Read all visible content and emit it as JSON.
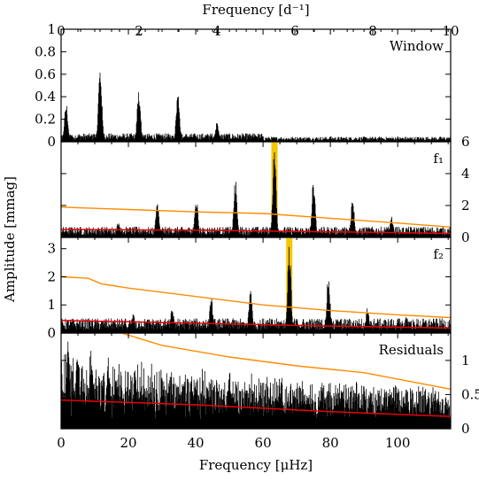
{
  "chart_data": {
    "type": "line",
    "x_top_label": "Frequency [d⁻¹]",
    "x_top_ticks": [
      "0",
      "2",
      "4",
      "6",
      "8",
      "10"
    ],
    "x_top_range": [
      0,
      10
    ],
    "x_bottom_label": "Frequency [μHz]",
    "x_bottom_ticks": [
      "0",
      "20",
      "40",
      "60",
      "80",
      "100"
    ],
    "x_bottom_range": [
      0,
      115.74
    ],
    "ylabel": "Amplitude [mmag]",
    "colors": {
      "spectrum": "#000000",
      "threshold": "#ff8c00",
      "noise": "#e8000b",
      "highlight": "#f5c800"
    },
    "panels": [
      {
        "label": "Window",
        "ylim": [
          0,
          1
        ],
        "y_ticks": [
          "0",
          "0.2",
          "0.4",
          "0.6",
          "0.8",
          "1"
        ],
        "y_tick_values": [
          0,
          0.2,
          0.4,
          0.6,
          0.8,
          1
        ],
        "y_side": "left",
        "peaks": [
          [
            11.6,
            0.68
          ],
          [
            23.1,
            0.47
          ],
          [
            34.7,
            0.45
          ],
          [
            46.3,
            0.17
          ],
          [
            57.9,
            0.06
          ],
          [
            1.5,
            0.35
          ]
        ],
        "floor": 0.05
      },
      {
        "label": "f₁",
        "ylim": [
          0,
          6
        ],
        "y_ticks": [
          "0",
          "2",
          "4",
          "6"
        ],
        "y_tick_values": [
          0,
          2,
          4,
          6
        ],
        "y_side": "right",
        "peaks": [
          [
            63.4,
            5.8
          ],
          [
            51.8,
            3.7
          ],
          [
            75.0,
            3.7
          ],
          [
            40.2,
            2.5
          ],
          [
            28.6,
            2.2
          ],
          [
            86.6,
            2.5
          ],
          [
            98.2,
            1.3
          ],
          [
            17.0,
            1.0
          ]
        ],
        "floor": 0.45,
        "threshold": [
          [
            0,
            1.9
          ],
          [
            20,
            1.75
          ],
          [
            40,
            1.6
          ],
          [
            60,
            1.5
          ],
          [
            80,
            1.2
          ],
          [
            100,
            0.9
          ],
          [
            115.7,
            0.65
          ]
        ],
        "noise": [
          [
            0,
            0.5
          ],
          [
            40,
            0.45
          ],
          [
            80,
            0.35
          ],
          [
            115.7,
            0.25
          ]
        ],
        "highlight_x": 63.4
      },
      {
        "label": "f₂",
        "ylim": [
          0,
          3.4
        ],
        "y_ticks": [
          "0",
          "1",
          "2",
          "3"
        ],
        "y_tick_values": [
          0,
          1,
          2,
          3
        ],
        "y_side": "left",
        "peaks": [
          [
            67.8,
            3.3
          ],
          [
            79.4,
            2.1
          ],
          [
            56.3,
            1.8
          ],
          [
            44.6,
            1.3
          ],
          [
            33.0,
            0.9
          ],
          [
            21.4,
            0.7
          ],
          [
            91.0,
            0.9
          ],
          [
            102.6,
            0.6
          ]
        ],
        "floor": 0.35,
        "threshold": [
          [
            0,
            2.0
          ],
          [
            8,
            1.95
          ],
          [
            12,
            1.75
          ],
          [
            20,
            1.6
          ],
          [
            40,
            1.3
          ],
          [
            60,
            1.0
          ],
          [
            80,
            0.8
          ],
          [
            100,
            0.65
          ],
          [
            115.7,
            0.55
          ]
        ],
        "noise": [
          [
            0,
            0.45
          ],
          [
            40,
            0.35
          ],
          [
            80,
            0.25
          ],
          [
            115.7,
            0.18
          ]
        ],
        "highlight_x": 67.8
      },
      {
        "label": "Residuals",
        "ylim": [
          0,
          1.4
        ],
        "y_ticks": [
          "0",
          "0.5",
          "1"
        ],
        "y_tick_values": [
          0,
          0.5,
          1
        ],
        "y_side": "right",
        "peaks": [
          [
            2,
            1.3
          ],
          [
            9,
            1.2
          ],
          [
            5,
            1.15
          ],
          [
            14,
            1.0
          ],
          [
            22,
            0.95
          ],
          [
            30,
            0.75
          ],
          [
            40,
            0.7
          ],
          [
            50,
            0.7
          ],
          [
            65,
            0.55
          ],
          [
            72,
            0.45
          ],
          [
            92,
            0.55
          ],
          [
            105,
            0.38
          ]
        ],
        "floor": 0.32,
        "threshold": [
          [
            18,
            1.4
          ],
          [
            30,
            1.22
          ],
          [
            50,
            1.05
          ],
          [
            70,
            0.92
          ],
          [
            90,
            0.82
          ],
          [
            115.7,
            0.58
          ]
        ],
        "noise": [
          [
            0,
            0.42
          ],
          [
            40,
            0.35
          ],
          [
            80,
            0.25
          ],
          [
            115.7,
            0.18
          ]
        ]
      }
    ]
  }
}
